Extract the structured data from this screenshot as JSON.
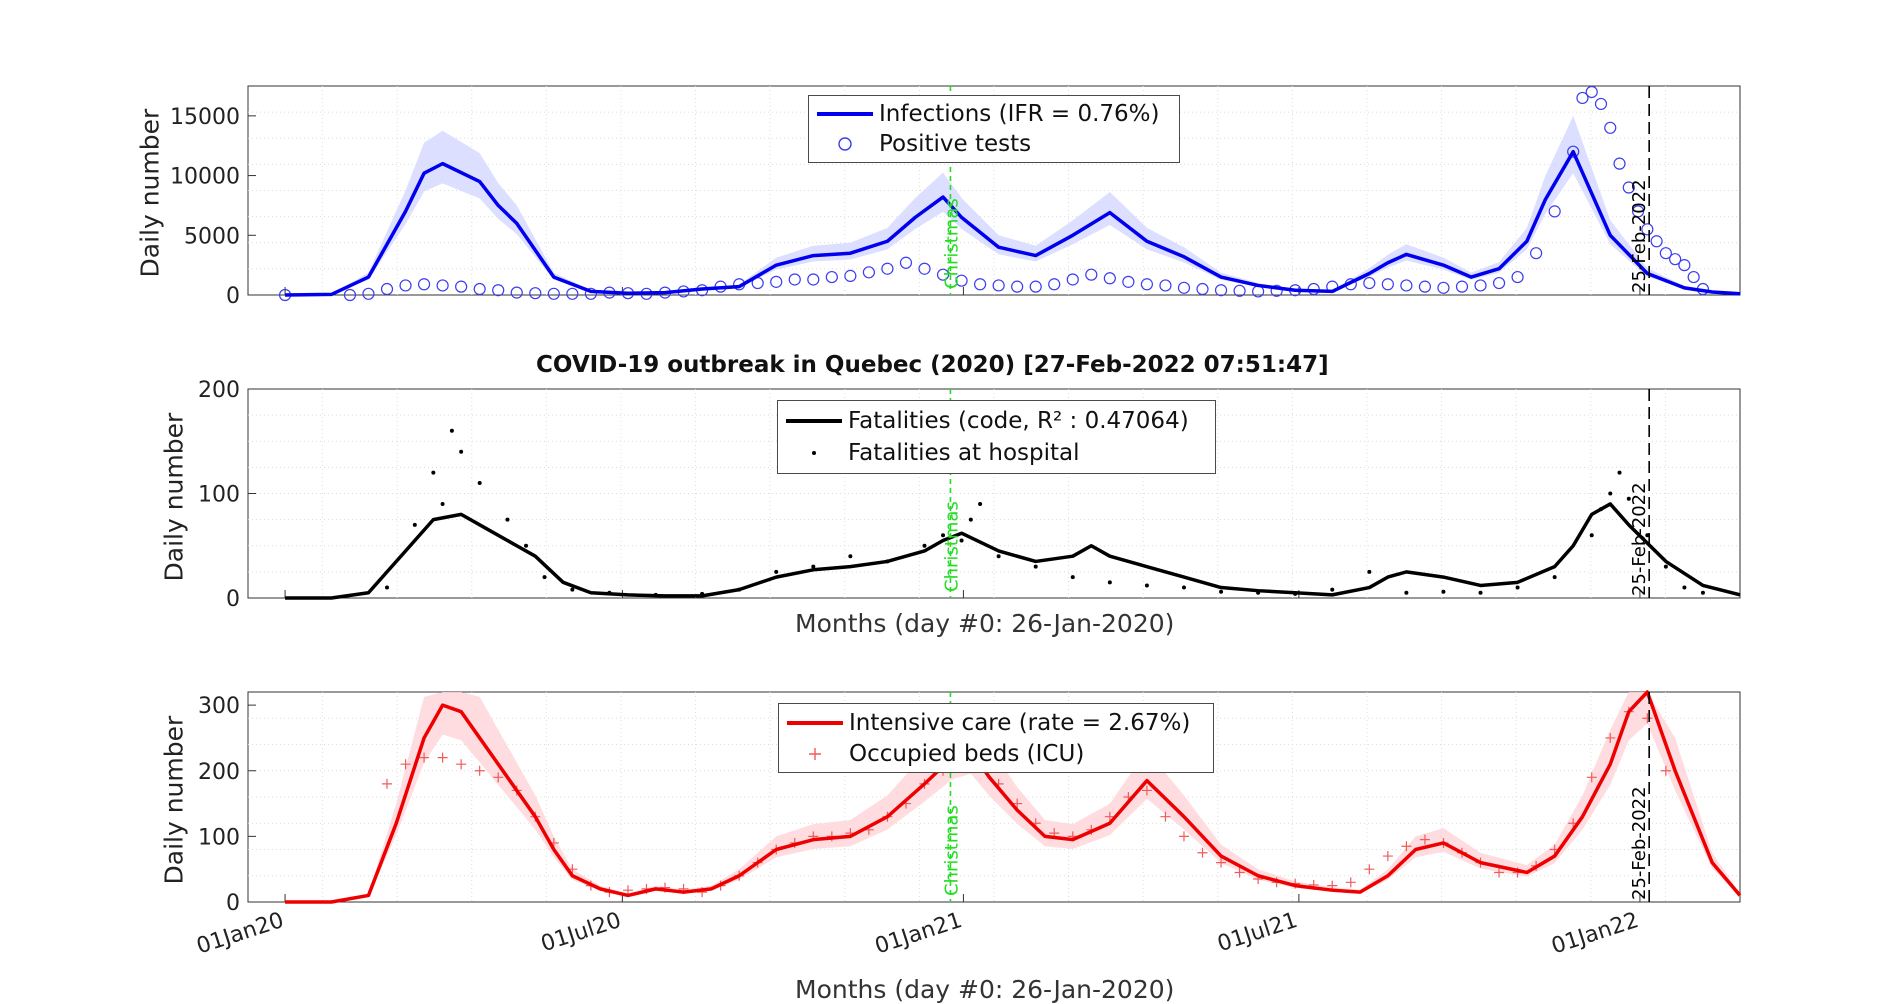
{
  "title": "COVID-19 outbreak in Quebec (2020) [27-Feb-2022 07:51:47]",
  "xlabel": "Months (day #0: 26-Jan-2020)",
  "ylabel": "Daily number",
  "x_ticks": [
    "01Jan20",
    "01Jul20",
    "01Jan21",
    "01Jul21",
    "01Jan22"
  ],
  "christmas_label": "Christmas",
  "cutoff_label": "25-Feb-2022",
  "chart_data": [
    {
      "type": "line",
      "panel": "infections",
      "ylim": [
        0,
        17500
      ],
      "yticks": [
        "0",
        "5000",
        "10000",
        "15000"
      ],
      "legend": [
        "Infections (IFR = 0.76%)",
        "Positive tests"
      ],
      "colors": {
        "line": "#0000ee",
        "band": "#d6d9ff",
        "marker": "#3c3cf0"
      },
      "x_days": [
        -25,
        0,
        20,
        40,
        50,
        60,
        80,
        90,
        100,
        120,
        140,
        160,
        180,
        200,
        220,
        240,
        260,
        280,
        300,
        315,
        330,
        340,
        360,
        380,
        400,
        420,
        440,
        460,
        480,
        500,
        520,
        540,
        560,
        570,
        580,
        600,
        615,
        630,
        645,
        655,
        670,
        690,
        710,
        730,
        745,
        760
      ],
      "values": [
        0,
        50,
        1500,
        7000,
        10200,
        11000,
        9500,
        7500,
        6000,
        1500,
        300,
        150,
        200,
        500,
        700,
        2500,
        3300,
        3500,
        4500,
        6500,
        8200,
        6500,
        4000,
        3300,
        5000,
        6900,
        4500,
        3200,
        1500,
        800,
        400,
        300,
        1800,
        2700,
        3400,
        2500,
        1500,
        2200,
        4500,
        8000,
        12000,
        5000,
        1800,
        600,
        250,
        100
      ],
      "tests_x": [
        -25,
        10,
        20,
        30,
        40,
        50,
        60,
        70,
        80,
        90,
        100,
        110,
        120,
        130,
        140,
        150,
        160,
        170,
        180,
        190,
        200,
        210,
        220,
        230,
        240,
        250,
        260,
        270,
        280,
        290,
        300,
        310,
        320,
        330,
        340,
        350,
        360,
        370,
        380,
        390,
        400,
        410,
        420,
        430,
        440,
        450,
        460,
        470,
        480,
        490,
        500,
        510,
        520,
        530,
        540,
        550,
        560,
        570,
        580,
        590,
        600,
        610,
        620,
        630,
        640,
        650,
        660,
        670,
        675,
        680,
        685,
        690,
        695,
        700,
        705,
        710,
        715,
        720,
        725,
        730,
        735,
        740
      ],
      "tests_y": [
        0,
        0,
        100,
        500,
        800,
        900,
        800,
        700,
        500,
        400,
        200,
        150,
        100,
        100,
        100,
        200,
        150,
        100,
        200,
        300,
        400,
        700,
        900,
        1000,
        1100,
        1300,
        1300,
        1500,
        1600,
        1900,
        2200,
        2700,
        2200,
        1700,
        1200,
        900,
        800,
        700,
        700,
        900,
        1300,
        1700,
        1400,
        1100,
        900,
        800,
        600,
        500,
        400,
        350,
        300,
        350,
        400,
        500,
        700,
        900,
        1000,
        900,
        800,
        700,
        600,
        700,
        800,
        1000,
        1500,
        3500,
        7000,
        12000,
        16500,
        17000,
        16000,
        14000,
        11000,
        9000,
        7000,
        5500,
        4500,
        3500,
        3000,
        2500,
        1500,
        500
      ]
    },
    {
      "type": "line",
      "panel": "fatalities",
      "ylim": [
        0,
        200
      ],
      "yticks": [
        "0",
        "100",
        "200"
      ],
      "legend": [
        "Fatalities (code, R² : 0.47064)",
        "Fatalities at hospital"
      ],
      "colors": {
        "line": "#000000",
        "marker": "#000000"
      },
      "x_days": [
        -25,
        0,
        20,
        40,
        55,
        70,
        85,
        100,
        110,
        125,
        140,
        160,
        180,
        200,
        220,
        240,
        260,
        280,
        300,
        320,
        330,
        340,
        360,
        380,
        400,
        410,
        420,
        440,
        460,
        480,
        500,
        520,
        540,
        560,
        570,
        580,
        600,
        620,
        640,
        660,
        670,
        680,
        690,
        700,
        720,
        740,
        760
      ],
      "values": [
        0,
        0,
        5,
        45,
        75,
        80,
        65,
        50,
        40,
        15,
        5,
        3,
        2,
        2,
        8,
        20,
        27,
        30,
        35,
        45,
        55,
        62,
        45,
        35,
        40,
        50,
        40,
        30,
        20,
        10,
        7,
        5,
        3,
        10,
        20,
        25,
        20,
        12,
        15,
        30,
        50,
        80,
        90,
        70,
        35,
        12,
        3
      ],
      "dots_x": [
        30,
        45,
        55,
        60,
        65,
        70,
        80,
        95,
        105,
        115,
        130,
        150,
        175,
        200,
        220,
        240,
        260,
        280,
        300,
        320,
        330,
        340,
        345,
        350,
        360,
        380,
        400,
        420,
        440,
        460,
        480,
        500,
        520,
        540,
        560,
        580,
        600,
        620,
        640,
        660,
        680,
        685,
        690,
        695,
        700,
        710,
        720,
        730,
        740
      ],
      "dots_y": [
        10,
        70,
        120,
        90,
        160,
        140,
        110,
        75,
        50,
        20,
        8,
        5,
        3,
        4,
        8,
        25,
        30,
        40,
        35,
        50,
        60,
        55,
        75,
        90,
        40,
        30,
        20,
        15,
        12,
        10,
        6,
        5,
        4,
        8,
        25,
        5,
        6,
        5,
        10,
        20,
        60,
        85,
        100,
        120,
        95,
        60,
        30,
        10,
        5
      ]
    },
    {
      "type": "line",
      "panel": "intensive-care",
      "ylim": [
        0,
        320
      ],
      "yticks": [
        "0",
        "100",
        "200",
        "300"
      ],
      "legend": [
        "Intensive care (rate = 2.67%)",
        "Occupied beds (ICU)"
      ],
      "colors": {
        "line": "#ee0000",
        "band": "#ffd6d9",
        "marker": "#f05a5a"
      },
      "x_days": [
        -25,
        0,
        20,
        35,
        50,
        60,
        70,
        80,
        90,
        100,
        110,
        120,
        130,
        145,
        160,
        175,
        190,
        205,
        220,
        240,
        260,
        280,
        300,
        320,
        335,
        345,
        355,
        370,
        385,
        400,
        420,
        440,
        460,
        480,
        500,
        520,
        540,
        555,
        570,
        585,
        600,
        620,
        645,
        660,
        675,
        690,
        700,
        710,
        725,
        745,
        760
      ],
      "values": [
        0,
        0,
        10,
        120,
        250,
        300,
        290,
        250,
        210,
        170,
        130,
        80,
        40,
        20,
        10,
        20,
        15,
        20,
        40,
        80,
        95,
        100,
        130,
        180,
        220,
        230,
        190,
        140,
        100,
        95,
        120,
        185,
        130,
        70,
        40,
        25,
        18,
        15,
        40,
        80,
        90,
        60,
        45,
        70,
        130,
        210,
        290,
        320,
        200,
        60,
        10
      ],
      "beds_x": [
        30,
        40,
        50,
        60,
        70,
        80,
        90,
        100,
        110,
        120,
        130,
        140,
        150,
        160,
        170,
        180,
        190,
        200,
        210,
        220,
        230,
        240,
        250,
        260,
        270,
        280,
        290,
        300,
        310,
        320,
        330,
        340,
        350,
        360,
        370,
        380,
        390,
        400,
        410,
        420,
        430,
        440,
        450,
        460,
        470,
        480,
        490,
        500,
        510,
        520,
        530,
        540,
        550,
        560,
        570,
        580,
        590,
        600,
        610,
        620,
        630,
        640,
        650,
        660,
        670,
        680,
        690,
        700,
        710,
        720
      ],
      "beds_y": [
        180,
        210,
        220,
        220,
        210,
        200,
        190,
        170,
        130,
        90,
        50,
        25,
        15,
        18,
        20,
        22,
        20,
        15,
        25,
        40,
        60,
        80,
        90,
        100,
        100,
        105,
        110,
        130,
        150,
        180,
        200,
        220,
        230,
        180,
        150,
        120,
        105,
        100,
        110,
        130,
        160,
        170,
        130,
        100,
        75,
        60,
        45,
        35,
        30,
        28,
        26,
        25,
        30,
        50,
        70,
        85,
        95,
        90,
        75,
        60,
        45,
        45,
        55,
        80,
        120,
        190,
        250,
        290,
        280,
        200
      ]
    }
  ]
}
